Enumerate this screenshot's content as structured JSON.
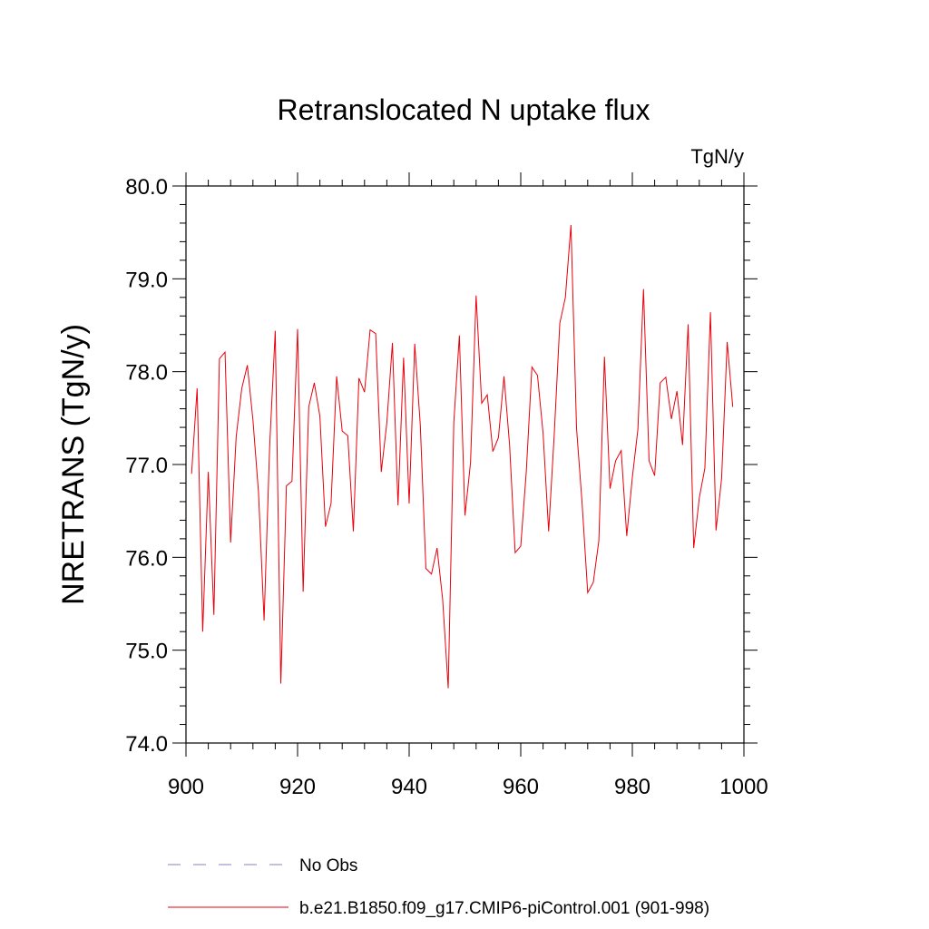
{
  "chart_data": {
    "type": "line",
    "title": "Retranslocated N uptake flux",
    "units": "TgN/y",
    "ylabel": "NRETRANS  (TgN/y)",
    "xlabel": "",
    "xlim": [
      900,
      1000
    ],
    "ylim": [
      74.0,
      80.0
    ],
    "x_ticks": [
      900,
      920,
      940,
      960,
      980,
      1000
    ],
    "x_tick_labels": [
      "900",
      "920",
      "940",
      "960",
      "980",
      "1000"
    ],
    "y_ticks": [
      74.0,
      75.0,
      76.0,
      77.0,
      78.0,
      79.0,
      80.0
    ],
    "y_tick_labels": [
      "74.0",
      "75.0",
      "76.0",
      "77.0",
      "78.0",
      "79.0",
      "80.0"
    ],
    "grid": false,
    "legend": [
      {
        "label": "No Obs",
        "color": "#8a7fc0",
        "style": "dashed"
      },
      {
        "label": "b.e21.B1850.f09_g17.CMIP6-piControl.001 (901-998)",
        "color": "#e8000b",
        "style": "solid"
      }
    ],
    "series": [
      {
        "name": "b.e21.B1850.f09_g17.CMIP6-piControl.001 (901-998)",
        "color": "#e8000b",
        "x": [
          901,
          902,
          903,
          904,
          905,
          906,
          907,
          908,
          909,
          910,
          911,
          912,
          913,
          914,
          915,
          916,
          917,
          918,
          919,
          920,
          921,
          922,
          923,
          924,
          925,
          926,
          927,
          928,
          929,
          930,
          931,
          932,
          933,
          934,
          935,
          936,
          937,
          938,
          939,
          940,
          941,
          942,
          943,
          944,
          945,
          946,
          947,
          948,
          949,
          950,
          951,
          952,
          953,
          954,
          955,
          956,
          957,
          958,
          959,
          960,
          961,
          962,
          963,
          964,
          965,
          966,
          967,
          968,
          969,
          970,
          971,
          972,
          973,
          974,
          975,
          976,
          977,
          978,
          979,
          980,
          981,
          982,
          983,
          984,
          985,
          986,
          987,
          988,
          989,
          990,
          991,
          992,
          993,
          994,
          995,
          996,
          997,
          998
        ],
        "values": [
          76.9,
          77.82,
          75.2,
          76.92,
          75.38,
          78.14,
          78.21,
          76.16,
          77.3,
          77.82,
          78.07,
          77.48,
          76.7,
          75.32,
          77.2,
          78.44,
          74.64,
          76.77,
          76.82,
          78.46,
          75.63,
          77.62,
          77.88,
          77.52,
          76.33,
          76.58,
          77.95,
          77.36,
          77.31,
          76.28,
          77.93,
          77.78,
          78.45,
          78.41,
          76.92,
          77.45,
          78.31,
          76.56,
          78.15,
          76.58,
          78.3,
          77.42,
          75.88,
          75.82,
          76.1,
          75.55,
          74.59,
          77.45,
          78.39,
          76.45,
          77.02,
          78.82,
          77.66,
          77.75,
          77.14,
          77.29,
          77.95,
          77.21,
          76.05,
          76.12,
          76.93,
          78.05,
          77.96,
          77.34,
          76.28,
          77.32,
          78.52,
          78.8,
          79.58,
          77.39,
          76.58,
          75.62,
          75.73,
          76.18,
          78.16,
          76.74,
          77.04,
          77.15,
          76.23,
          76.86,
          77.38,
          78.89,
          77.04,
          76.88,
          77.88,
          77.94,
          77.49,
          77.79,
          77.21,
          78.51,
          76.1,
          76.64,
          76.96,
          78.64,
          76.29,
          76.85,
          78.32,
          77.62
        ]
      }
    ]
  }
}
